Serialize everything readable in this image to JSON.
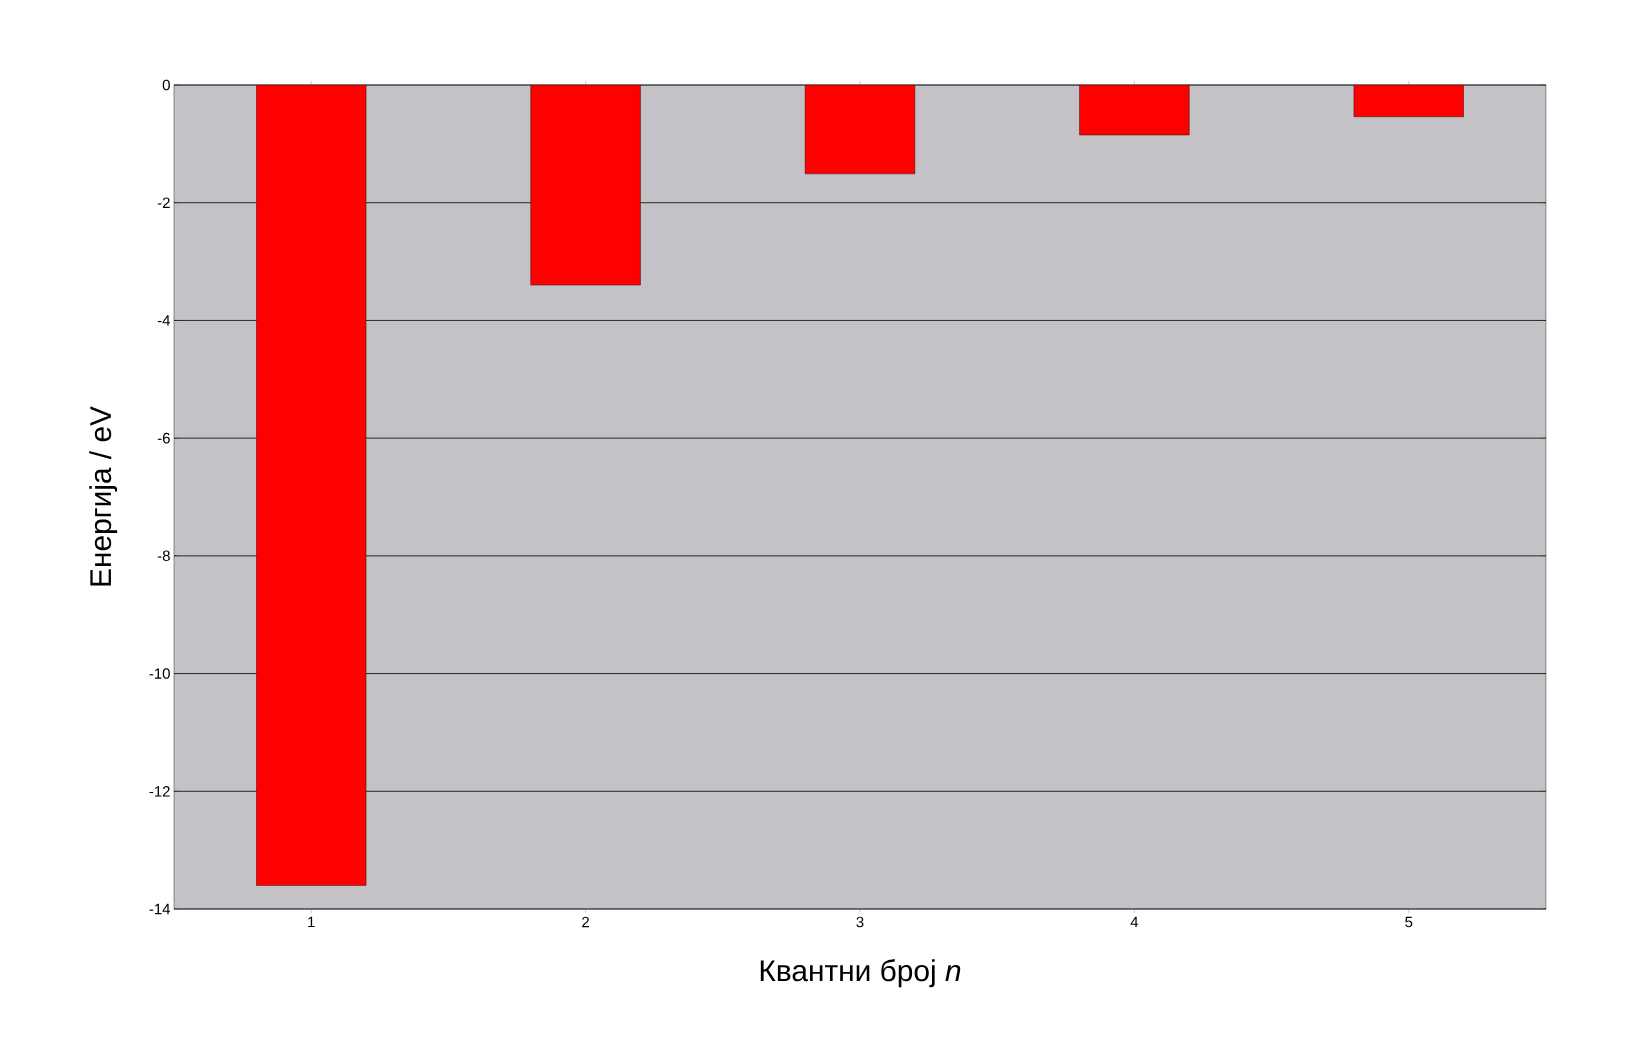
{
  "chart_data": {
    "type": "bar",
    "xlabel": "Квантни број *n*",
    "ylabel": "Енергија / eV",
    "categories": [
      "1",
      "2",
      "3",
      "4",
      "5"
    ],
    "values": [
      -13.6,
      -3.4,
      -1.51,
      -0.85,
      -0.54
    ],
    "color": "#ff0000",
    "ylim": [
      -14,
      0
    ],
    "yticks": [
      -14,
      -12,
      -10,
      -8,
      -6,
      -4,
      -2,
      0
    ],
    "grid": "y"
  }
}
